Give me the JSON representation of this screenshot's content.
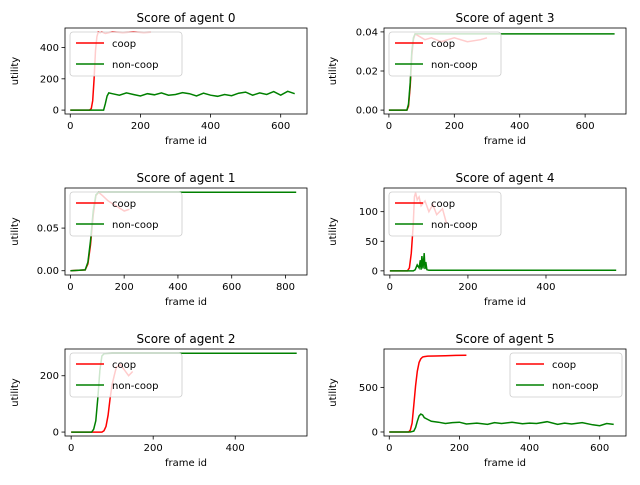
{
  "colors": {
    "coop": "#ff0000",
    "noncoop": "#008000",
    "axis": "#000000"
  },
  "chart_data": [
    {
      "type": "line",
      "title": "Score of agent 0",
      "xlabel": "frame id",
      "ylabel": "utility",
      "xlim": [
        -15,
        675
      ],
      "ylim": [
        -25,
        525
      ],
      "xticks": [
        0,
        200,
        400,
        600
      ],
      "yticks": [
        0,
        200,
        400
      ],
      "legend": "upper left",
      "series": [
        {
          "name": "coop",
          "color": "#ff0000",
          "x": [
            0,
            55,
            60,
            64,
            68,
            72,
            76,
            80,
            85,
            90,
            100,
            120,
            150,
            180,
            210,
            230
          ],
          "y": [
            0,
            0,
            10,
            60,
            200,
            380,
            470,
            500,
            495,
            500,
            490,
            500,
            495,
            500,
            495,
            498
          ]
        },
        {
          "name": "non-coop",
          "color": "#008000",
          "x": [
            0,
            95,
            100,
            105,
            110,
            120,
            140,
            160,
            180,
            200,
            220,
            240,
            260,
            280,
            300,
            320,
            340,
            360,
            380,
            400,
            420,
            440,
            460,
            480,
            500,
            520,
            540,
            560,
            580,
            600,
            620,
            640
          ],
          "y": [
            0,
            0,
            40,
            90,
            110,
            105,
            95,
            110,
            100,
            90,
            105,
            98,
            110,
            95,
            100,
            112,
            105,
            90,
            108,
            95,
            88,
            100,
            92,
            108,
            115,
            95,
            110,
            100,
            118,
            95,
            120,
            105
          ]
        }
      ]
    },
    {
      "type": "line",
      "title": "Score of agent 3",
      "xlabel": "frame id",
      "ylabel": "utility",
      "xlim": [
        -15,
        725
      ],
      "ylim": [
        -0.002,
        0.042
      ],
      "xticks": [
        0,
        200,
        400,
        600
      ],
      "yticks": [
        0.0,
        0.02,
        0.04
      ],
      "ytick_labels": [
        "0.00",
        "0.02",
        "0.04"
      ],
      "legend": "upper left",
      "series": [
        {
          "name": "coop",
          "color": "#ff0000",
          "x": [
            0,
            55,
            60,
            65,
            70,
            75,
            80,
            90,
            110,
            130,
            160,
            200,
            240,
            280,
            300
          ],
          "y": [
            0,
            0,
            0.002,
            0.012,
            0.028,
            0.036,
            0.039,
            0.038,
            0.036,
            0.037,
            0.035,
            0.037,
            0.035,
            0.036,
            0.037
          ]
        },
        {
          "name": "non-coop",
          "color": "#008000",
          "x": [
            0,
            55,
            60,
            65,
            70,
            75,
            80,
            90,
            120,
            200,
            300,
            400,
            500,
            600,
            690
          ],
          "y": [
            0,
            0,
            0.003,
            0.014,
            0.03,
            0.037,
            0.039,
            0.039,
            0.039,
            0.039,
            0.039,
            0.039,
            0.039,
            0.039,
            0.039
          ]
        }
      ]
    },
    {
      "type": "line",
      "title": "Score of agent 1",
      "xlabel": "frame id",
      "ylabel": "utility",
      "xlim": [
        -20,
        880
      ],
      "ylim": [
        -0.005,
        0.097
      ],
      "xticks": [
        0,
        200,
        400,
        600,
        800
      ],
      "yticks": [
        0.0,
        0.05
      ],
      "ytick_labels": [
        "0.00",
        "0.05"
      ],
      "legend": "upper left",
      "series": [
        {
          "name": "coop",
          "color": "#ff0000",
          "x": [
            0,
            55,
            65,
            75,
            85,
            95,
            105,
            120,
            140,
            160,
            180,
            200,
            220
          ],
          "y": [
            0,
            0.001,
            0.008,
            0.03,
            0.065,
            0.088,
            0.092,
            0.088,
            0.082,
            0.078,
            0.074,
            0.07,
            0.072
          ]
        },
        {
          "name": "non-coop",
          "color": "#008000",
          "x": [
            0,
            55,
            65,
            75,
            85,
            95,
            105,
            120,
            200,
            400,
            600,
            840
          ],
          "y": [
            0,
            0.001,
            0.01,
            0.035,
            0.07,
            0.089,
            0.092,
            0.092,
            0.092,
            0.092,
            0.092,
            0.092
          ]
        }
      ]
    },
    {
      "type": "line",
      "title": "Score of agent 4",
      "xlabel": "frame id",
      "ylabel": "utility",
      "xlim": [
        -15,
        605
      ],
      "ylim": [
        -7,
        140
      ],
      "xticks": [
        0,
        200,
        400
      ],
      "yticks": [
        0,
        50,
        100
      ],
      "legend": "upper left",
      "series": [
        {
          "name": "coop",
          "color": "#ff0000",
          "x": [
            0,
            45,
            50,
            55,
            60,
            63,
            66,
            70,
            75,
            80,
            90,
            100,
            110,
            120,
            135,
            145
          ],
          "y": [
            0,
            0,
            5,
            30,
            80,
            125,
            132,
            120,
            125,
            110,
            118,
            100,
            112,
            95,
            105,
            80
          ]
        },
        {
          "name": "non-coop",
          "color": "#008000",
          "x": [
            0,
            60,
            65,
            70,
            75,
            78,
            80,
            82,
            85,
            88,
            90,
            92,
            95,
            100,
            120,
            200,
            300,
            400,
            500,
            580
          ],
          "y": [
            0,
            0,
            2,
            10,
            5,
            18,
            2,
            25,
            4,
            30,
            3,
            15,
            2,
            1,
            1,
            1,
            1,
            1,
            1,
            1
          ]
        }
      ]
    },
    {
      "type": "line",
      "title": "Score of agent 2",
      "xlabel": "frame id",
      "ylabel": "utility",
      "xlim": [
        -15,
        575
      ],
      "ylim": [
        -14,
        295
      ],
      "xticks": [
        0,
        200,
        400
      ],
      "yticks": [
        0,
        200
      ],
      "legend": "upper left",
      "series": [
        {
          "name": "coop",
          "color": "#ff0000",
          "x": [
            0,
            75,
            80,
            85,
            90,
            95,
            100,
            105,
            110,
            120,
            130,
            140,
            150
          ],
          "y": [
            0,
            0,
            5,
            20,
            60,
            120,
            170,
            200,
            230,
            240,
            220,
            200,
            215
          ]
        },
        {
          "name": "non-coop",
          "color": "#008000",
          "x": [
            0,
            50,
            55,
            60,
            65,
            70,
            75,
            80,
            100,
            200,
            300,
            400,
            550
          ],
          "y": [
            0,
            0,
            10,
            40,
            120,
            220,
            270,
            278,
            280,
            280,
            280,
            280,
            280
          ]
        }
      ]
    },
    {
      "type": "line",
      "title": "Score of agent 5",
      "xlabel": "frame id",
      "ylabel": "utility",
      "xlim": [
        -15,
        675
      ],
      "ylim": [
        -45,
        930
      ],
      "xticks": [
        0,
        200,
        400,
        600
      ],
      "yticks": [
        0,
        500
      ],
      "legend": "upper right",
      "series": [
        {
          "name": "coop",
          "color": "#ff0000",
          "x": [
            0,
            55,
            60,
            65,
            70,
            75,
            80,
            85,
            90,
            95,
            100,
            110,
            130,
            160,
            190,
            220
          ],
          "y": [
            0,
            0,
            20,
            100,
            300,
            520,
            680,
            780,
            820,
            840,
            845,
            850,
            852,
            855,
            858,
            860
          ]
        },
        {
          "name": "non-coop",
          "color": "#008000",
          "x": [
            0,
            60,
            70,
            75,
            80,
            85,
            90,
            95,
            100,
            110,
            120,
            140,
            160,
            180,
            200,
            220,
            250,
            280,
            300,
            320,
            350,
            380,
            400,
            420,
            450,
            480,
            500,
            520,
            550,
            580,
            600,
            620,
            640
          ],
          "y": [
            0,
            0,
            10,
            50,
            120,
            180,
            200,
            190,
            160,
            140,
            120,
            110,
            95,
            105,
            110,
            90,
            100,
            85,
            105,
            95,
            110,
            92,
            100,
            95,
            115,
            85,
            100,
            90,
            105,
            80,
            70,
            95,
            85
          ]
        }
      ]
    }
  ]
}
